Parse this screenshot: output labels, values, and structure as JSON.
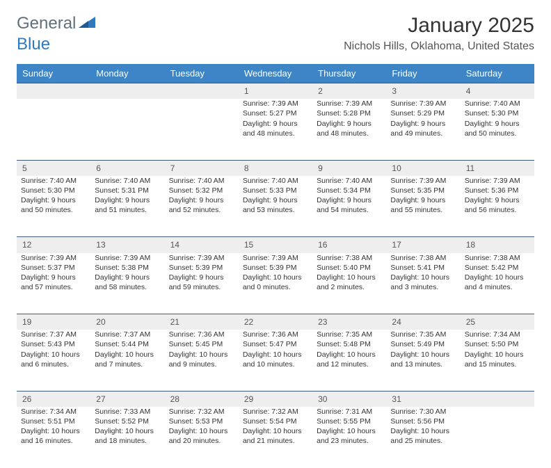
{
  "brand": {
    "general": "General",
    "blue": "Blue"
  },
  "title": "January 2025",
  "location": "Nichols Hills, Oklahoma, United States",
  "colors": {
    "header_bg": "#3d85c6",
    "header_text": "#ffffff",
    "daynum_bg": "#eeeeee",
    "row_border": "#3d5a80",
    "brand_gray": "#60707c",
    "brand_blue": "#2f7abf",
    "text": "#333333"
  },
  "day_labels": [
    "Sunday",
    "Monday",
    "Tuesday",
    "Wednesday",
    "Thursday",
    "Friday",
    "Saturday"
  ],
  "weeks": [
    {
      "nums": [
        "",
        "",
        "",
        "1",
        "2",
        "3",
        "4"
      ],
      "cells": [
        null,
        null,
        null,
        {
          "sunrise": "7:39 AM",
          "sunset": "5:27 PM",
          "dl1": "Daylight: 9 hours",
          "dl2": "and 48 minutes."
        },
        {
          "sunrise": "7:39 AM",
          "sunset": "5:28 PM",
          "dl1": "Daylight: 9 hours",
          "dl2": "and 48 minutes."
        },
        {
          "sunrise": "7:39 AM",
          "sunset": "5:29 PM",
          "dl1": "Daylight: 9 hours",
          "dl2": "and 49 minutes."
        },
        {
          "sunrise": "7:40 AM",
          "sunset": "5:30 PM",
          "dl1": "Daylight: 9 hours",
          "dl2": "and 50 minutes."
        }
      ]
    },
    {
      "nums": [
        "5",
        "6",
        "7",
        "8",
        "9",
        "10",
        "11"
      ],
      "cells": [
        {
          "sunrise": "7:40 AM",
          "sunset": "5:30 PM",
          "dl1": "Daylight: 9 hours",
          "dl2": "and 50 minutes."
        },
        {
          "sunrise": "7:40 AM",
          "sunset": "5:31 PM",
          "dl1": "Daylight: 9 hours",
          "dl2": "and 51 minutes."
        },
        {
          "sunrise": "7:40 AM",
          "sunset": "5:32 PM",
          "dl1": "Daylight: 9 hours",
          "dl2": "and 52 minutes."
        },
        {
          "sunrise": "7:40 AM",
          "sunset": "5:33 PM",
          "dl1": "Daylight: 9 hours",
          "dl2": "and 53 minutes."
        },
        {
          "sunrise": "7:40 AM",
          "sunset": "5:34 PM",
          "dl1": "Daylight: 9 hours",
          "dl2": "and 54 minutes."
        },
        {
          "sunrise": "7:39 AM",
          "sunset": "5:35 PM",
          "dl1": "Daylight: 9 hours",
          "dl2": "and 55 minutes."
        },
        {
          "sunrise": "7:39 AM",
          "sunset": "5:36 PM",
          "dl1": "Daylight: 9 hours",
          "dl2": "and 56 minutes."
        }
      ]
    },
    {
      "nums": [
        "12",
        "13",
        "14",
        "15",
        "16",
        "17",
        "18"
      ],
      "cells": [
        {
          "sunrise": "7:39 AM",
          "sunset": "5:37 PM",
          "dl1": "Daylight: 9 hours",
          "dl2": "and 57 minutes."
        },
        {
          "sunrise": "7:39 AM",
          "sunset": "5:38 PM",
          "dl1": "Daylight: 9 hours",
          "dl2": "and 58 minutes."
        },
        {
          "sunrise": "7:39 AM",
          "sunset": "5:39 PM",
          "dl1": "Daylight: 9 hours",
          "dl2": "and 59 minutes."
        },
        {
          "sunrise": "7:39 AM",
          "sunset": "5:39 PM",
          "dl1": "Daylight: 10 hours",
          "dl2": "and 0 minutes."
        },
        {
          "sunrise": "7:38 AM",
          "sunset": "5:40 PM",
          "dl1": "Daylight: 10 hours",
          "dl2": "and 2 minutes."
        },
        {
          "sunrise": "7:38 AM",
          "sunset": "5:41 PM",
          "dl1": "Daylight: 10 hours",
          "dl2": "and 3 minutes."
        },
        {
          "sunrise": "7:38 AM",
          "sunset": "5:42 PM",
          "dl1": "Daylight: 10 hours",
          "dl2": "and 4 minutes."
        }
      ]
    },
    {
      "nums": [
        "19",
        "20",
        "21",
        "22",
        "23",
        "24",
        "25"
      ],
      "cells": [
        {
          "sunrise": "7:37 AM",
          "sunset": "5:43 PM",
          "dl1": "Daylight: 10 hours",
          "dl2": "and 6 minutes."
        },
        {
          "sunrise": "7:37 AM",
          "sunset": "5:44 PM",
          "dl1": "Daylight: 10 hours",
          "dl2": "and 7 minutes."
        },
        {
          "sunrise": "7:36 AM",
          "sunset": "5:45 PM",
          "dl1": "Daylight: 10 hours",
          "dl2": "and 9 minutes."
        },
        {
          "sunrise": "7:36 AM",
          "sunset": "5:47 PM",
          "dl1": "Daylight: 10 hours",
          "dl2": "and 10 minutes."
        },
        {
          "sunrise": "7:35 AM",
          "sunset": "5:48 PM",
          "dl1": "Daylight: 10 hours",
          "dl2": "and 12 minutes."
        },
        {
          "sunrise": "7:35 AM",
          "sunset": "5:49 PM",
          "dl1": "Daylight: 10 hours",
          "dl2": "and 13 minutes."
        },
        {
          "sunrise": "7:34 AM",
          "sunset": "5:50 PM",
          "dl1": "Daylight: 10 hours",
          "dl2": "and 15 minutes."
        }
      ]
    },
    {
      "nums": [
        "26",
        "27",
        "28",
        "29",
        "30",
        "31",
        ""
      ],
      "cells": [
        {
          "sunrise": "7:34 AM",
          "sunset": "5:51 PM",
          "dl1": "Daylight: 10 hours",
          "dl2": "and 16 minutes."
        },
        {
          "sunrise": "7:33 AM",
          "sunset": "5:52 PM",
          "dl1": "Daylight: 10 hours",
          "dl2": "and 18 minutes."
        },
        {
          "sunrise": "7:32 AM",
          "sunset": "5:53 PM",
          "dl1": "Daylight: 10 hours",
          "dl2": "and 20 minutes."
        },
        {
          "sunrise": "7:32 AM",
          "sunset": "5:54 PM",
          "dl1": "Daylight: 10 hours",
          "dl2": "and 21 minutes."
        },
        {
          "sunrise": "7:31 AM",
          "sunset": "5:55 PM",
          "dl1": "Daylight: 10 hours",
          "dl2": "and 23 minutes."
        },
        {
          "sunrise": "7:30 AM",
          "sunset": "5:56 PM",
          "dl1": "Daylight: 10 hours",
          "dl2": "and 25 minutes."
        },
        null
      ]
    }
  ]
}
